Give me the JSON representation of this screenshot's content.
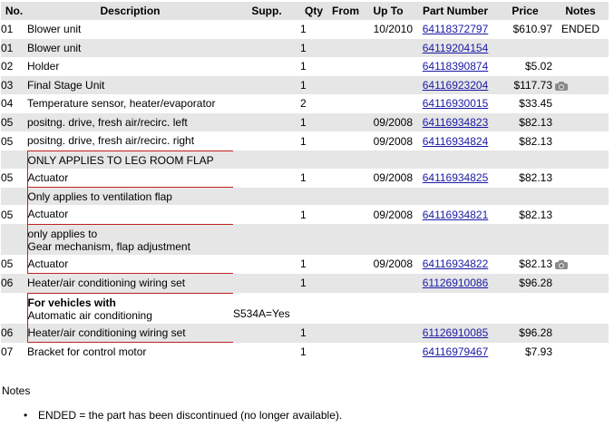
{
  "columns": {
    "no": "No.",
    "description": "Description",
    "supp": "Supp.",
    "qty": "Qty",
    "from": "From",
    "upto": "Up To",
    "part_number": "Part Number",
    "price": "Price",
    "notes": "Notes"
  },
  "rows": [
    {
      "no": "01",
      "desc": "Blower unit",
      "supp": "",
      "qty": "1",
      "from": "",
      "upto": "10/2010",
      "part": "64118372797",
      "price": "$610.97",
      "note": "ENDED"
    },
    {
      "no": "01",
      "desc": "Blower unit",
      "supp": "",
      "qty": "1",
      "from": "",
      "upto": "",
      "part": "64119204154",
      "price": "",
      "note": ""
    },
    {
      "no": "02",
      "desc": "Holder",
      "supp": "",
      "qty": "1",
      "from": "",
      "upto": "",
      "part": "64118390874",
      "price": "$5.02",
      "note": ""
    },
    {
      "no": "03",
      "desc": "Final Stage Unit",
      "supp": "",
      "qty": "1",
      "from": "",
      "upto": "",
      "part": "64116923204",
      "price": "$117.73",
      "note": "",
      "icon": "camera-icon"
    },
    {
      "no": "04",
      "desc": "Temperature sensor, heater/evaporator",
      "supp": "",
      "qty": "2",
      "from": "",
      "upto": "",
      "part": "64116930015",
      "price": "$33.45",
      "note": ""
    },
    {
      "no": "05",
      "desc": "positng. drive, fresh air/recirc. left",
      "supp": "",
      "qty": "1",
      "from": "",
      "upto": "09/2008",
      "part": "64116934823",
      "price": "$82.13",
      "note": ""
    },
    {
      "no": "05",
      "desc": "positng. drive, fresh air/recirc. right",
      "supp": "",
      "qty": "1",
      "from": "",
      "upto": "09/2008",
      "part": "64116934824",
      "price": "$82.13",
      "note": ""
    },
    {
      "no": "05",
      "desc": "Actuator",
      "supp": "",
      "qty": "1",
      "from": "",
      "upto": "09/2008",
      "part": "64116934825",
      "price": "$82.13",
      "note": "",
      "applies": [
        "ONLY APPLIES TO LEG ROOM FLAP"
      ]
    },
    {
      "no": "05",
      "desc": "Actuator",
      "supp": "",
      "qty": "1",
      "from": "",
      "upto": "09/2008",
      "part": "64116934821",
      "price": "$82.13",
      "note": "",
      "applies": [
        "Only applies to ventilation flap"
      ]
    },
    {
      "no": "05",
      "desc": "Actuator",
      "supp": "",
      "qty": "1",
      "from": "",
      "upto": "09/2008",
      "part": "64116934822",
      "price": "$82.13",
      "note": "",
      "icon": "camera-icon",
      "applies": [
        "only applies to",
        "Gear mechanism, flap adjustment"
      ]
    },
    {
      "no": "06",
      "desc": "Heater/air conditioning wiring set",
      "supp": "",
      "qty": "1",
      "from": "",
      "upto": "",
      "part": "61126910086",
      "price": "$96.28",
      "note": ""
    },
    {
      "no": "06",
      "desc": "Heater/air conditioning wiring set",
      "supp": "",
      "qty": "1",
      "from": "",
      "upto": "",
      "part": "61126910085",
      "price": "$96.28",
      "note": "",
      "vehicles": {
        "heading": "For vehicles with",
        "condition": "Automatic air conditioning",
        "supp": "S534A=Yes"
      }
    },
    {
      "no": "07",
      "desc": "Bracket for control motor",
      "supp": "",
      "qty": "1",
      "from": "",
      "upto": "",
      "part": "64116979467",
      "price": "$7.93",
      "note": ""
    }
  ],
  "notes_section": {
    "title": "Notes",
    "items": [
      "ENDED = the part has been discontinued (no longer available)."
    ]
  }
}
